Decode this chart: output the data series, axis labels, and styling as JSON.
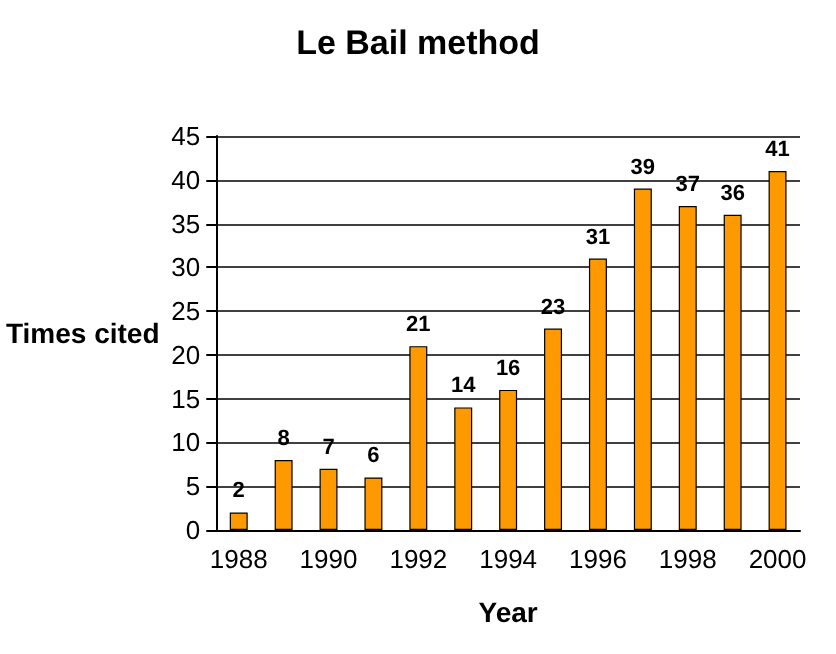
{
  "chart_data": {
    "type": "bar",
    "title": "Le Bail method",
    "xlabel": "Year",
    "ylabel": "Times cited",
    "categories": [
      "1988",
      null,
      "1990",
      null,
      "1992",
      null,
      "1994",
      null,
      "1996",
      null,
      "1998",
      null,
      "2000"
    ],
    "values": [
      2,
      8,
      7,
      6,
      21,
      14,
      16,
      23,
      31,
      39,
      37,
      36,
      41
    ],
    "color": "#ff9900",
    "ylim": [
      0,
      45
    ],
    "yticks": [
      0,
      5,
      10,
      15,
      20,
      25,
      30,
      35,
      40,
      45
    ],
    "grid": "y",
    "data_labels": true
  }
}
